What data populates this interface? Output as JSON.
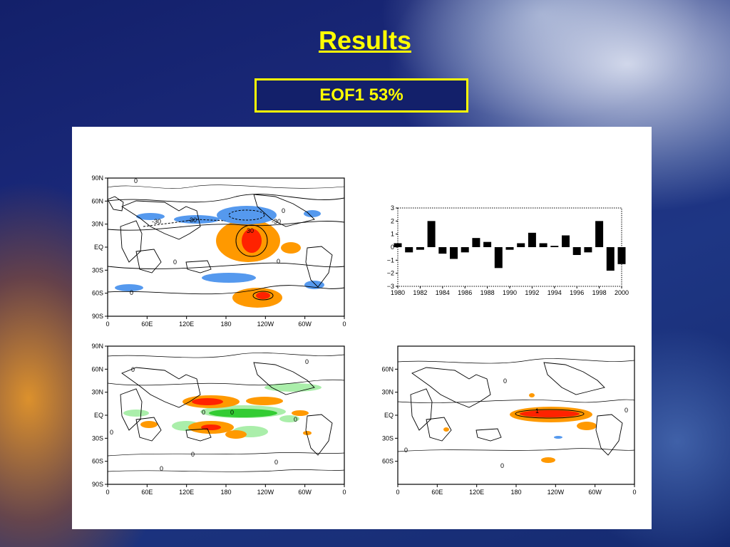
{
  "slide": {
    "title": "Results",
    "subtitle": "EOF1  53%"
  },
  "colors": {
    "title": "#ffff00",
    "positive_light": "#ff9900",
    "positive_strong": "#ff2200",
    "negative": "#5599ee",
    "precip_wet": "#33cc33",
    "precip_light": "#aaeeaa"
  },
  "maps": {
    "lat_labels": [
      "90N",
      "60N",
      "30N",
      "EQ",
      "30S",
      "60S",
      "90S"
    ],
    "lon_labels": [
      "0",
      "60E",
      "120E",
      "180",
      "120W",
      "60W",
      "0"
    ],
    "map1_contours": [
      "-30",
      "-30",
      "-30",
      "30",
      "0",
      "0",
      "0",
      "0",
      "0"
    ],
    "map2_contours": [
      "0",
      "0",
      "0",
      "0",
      "0",
      "0",
      "0",
      "0",
      "0"
    ],
    "map3_contours": [
      "1",
      "0",
      "0",
      "0",
      "0"
    ]
  },
  "chart_data": {
    "type": "bar",
    "title": "",
    "xlabel": "",
    "ylabel": "",
    "x": [
      1980,
      1981,
      1982,
      1983,
      1984,
      1985,
      1986,
      1987,
      1988,
      1989,
      1990,
      1991,
      1992,
      1993,
      1994,
      1995,
      1996,
      1997,
      1998,
      1999,
      2000
    ],
    "values": [
      0.3,
      -0.4,
      -0.2,
      2.0,
      -0.5,
      -0.9,
      -0.4,
      0.7,
      0.4,
      -1.6,
      -0.2,
      0.3,
      1.1,
      0.3,
      0.1,
      0.9,
      -0.6,
      -0.4,
      2.0,
      -1.8,
      -1.3
    ],
    "xticks": [
      1980,
      1982,
      1984,
      1986,
      1988,
      1990,
      1992,
      1994,
      1996,
      1998,
      2000
    ],
    "yticks": [
      3,
      2,
      1,
      0,
      -1,
      -2,
      -3
    ],
    "ylim": [
      -3,
      3
    ],
    "xlim": [
      1980,
      2000
    ]
  }
}
